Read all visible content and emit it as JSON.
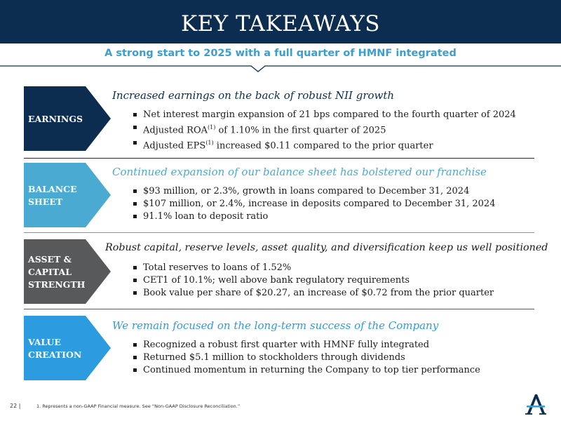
{
  "header": {
    "title": "KEY TAKEAWAYS",
    "subtitle": "A strong start to 2025 with a full quarter of HMNF integrated",
    "background": "#0c2d4f",
    "subtitle_color": "#3a9fd0"
  },
  "sections": [
    {
      "label_line1": "EARNINGS",
      "label_line2": "",
      "label_line3": "",
      "color": "#0c2d4f",
      "heading": "Increased earnings on the back of robust NII growth",
      "heading_color": "#0c2d4f",
      "bullets": [
        "Net interest margin expansion of 21 bps compared to the fourth quarter of 2024",
        "of 1.10% in the first quarter of 2025",
        "increased $0.11 compared to the prior quarter"
      ],
      "roa_prefix": "Adjusted ROA",
      "eps_prefix": "Adjusted EPS",
      "footnote_mark": "(1)"
    },
    {
      "label_line1": "BALANCE",
      "label_line2": "SHEET",
      "label_line3": "",
      "color": "#4aaad2",
      "heading": "Continued expansion of our balance sheet has bolstered our franchise",
      "heading_color": "#4aaad2",
      "bullets": [
        "$93 million, or 2.3%, growth in loans compared to December 31, 2024",
        "$107 million, or 2.4%, increase in deposits compared to December 31, 2024",
        "91.1% loan to deposit ratio"
      ]
    },
    {
      "label_line1": "ASSET &",
      "label_line2": "CAPITAL",
      "label_line3": "STRENGTH",
      "color": "#58595b",
      "heading": "Robust capital, reserve levels, asset quality, and diversification keep us well positioned",
      "heading_color": "#1b1b1b",
      "bullets": [
        "Total reserves to loans of 1.52%",
        "CET1 of 10.1%; well above bank regulatory requirements",
        "Book value per share of $20.27, an increase of $0.72 from the prior quarter"
      ]
    },
    {
      "label_line1": "VALUE",
      "label_line2": "CREATION",
      "label_line3": "",
      "color": "#2c9be0",
      "heading": "We remain focused on the long-term success of the Company",
      "heading_color": "#2c9be0",
      "bullets": [
        "Recognized a robust first quarter with HMNF fully integrated",
        "Returned $5.1 million to stockholders through dividends",
        "Continued momentum in returning the Company to top tier performance"
      ]
    }
  ],
  "footer": {
    "page_number": "22 |",
    "note": "1. Represents a non-GAAP Financial measure. See “Non-GAAP Disclosure Reconciliation.”"
  },
  "logo": {
    "icon": "alerus-a-logo-icon",
    "color": "#0c2d4f",
    "accent": "#3a9fd0"
  }
}
